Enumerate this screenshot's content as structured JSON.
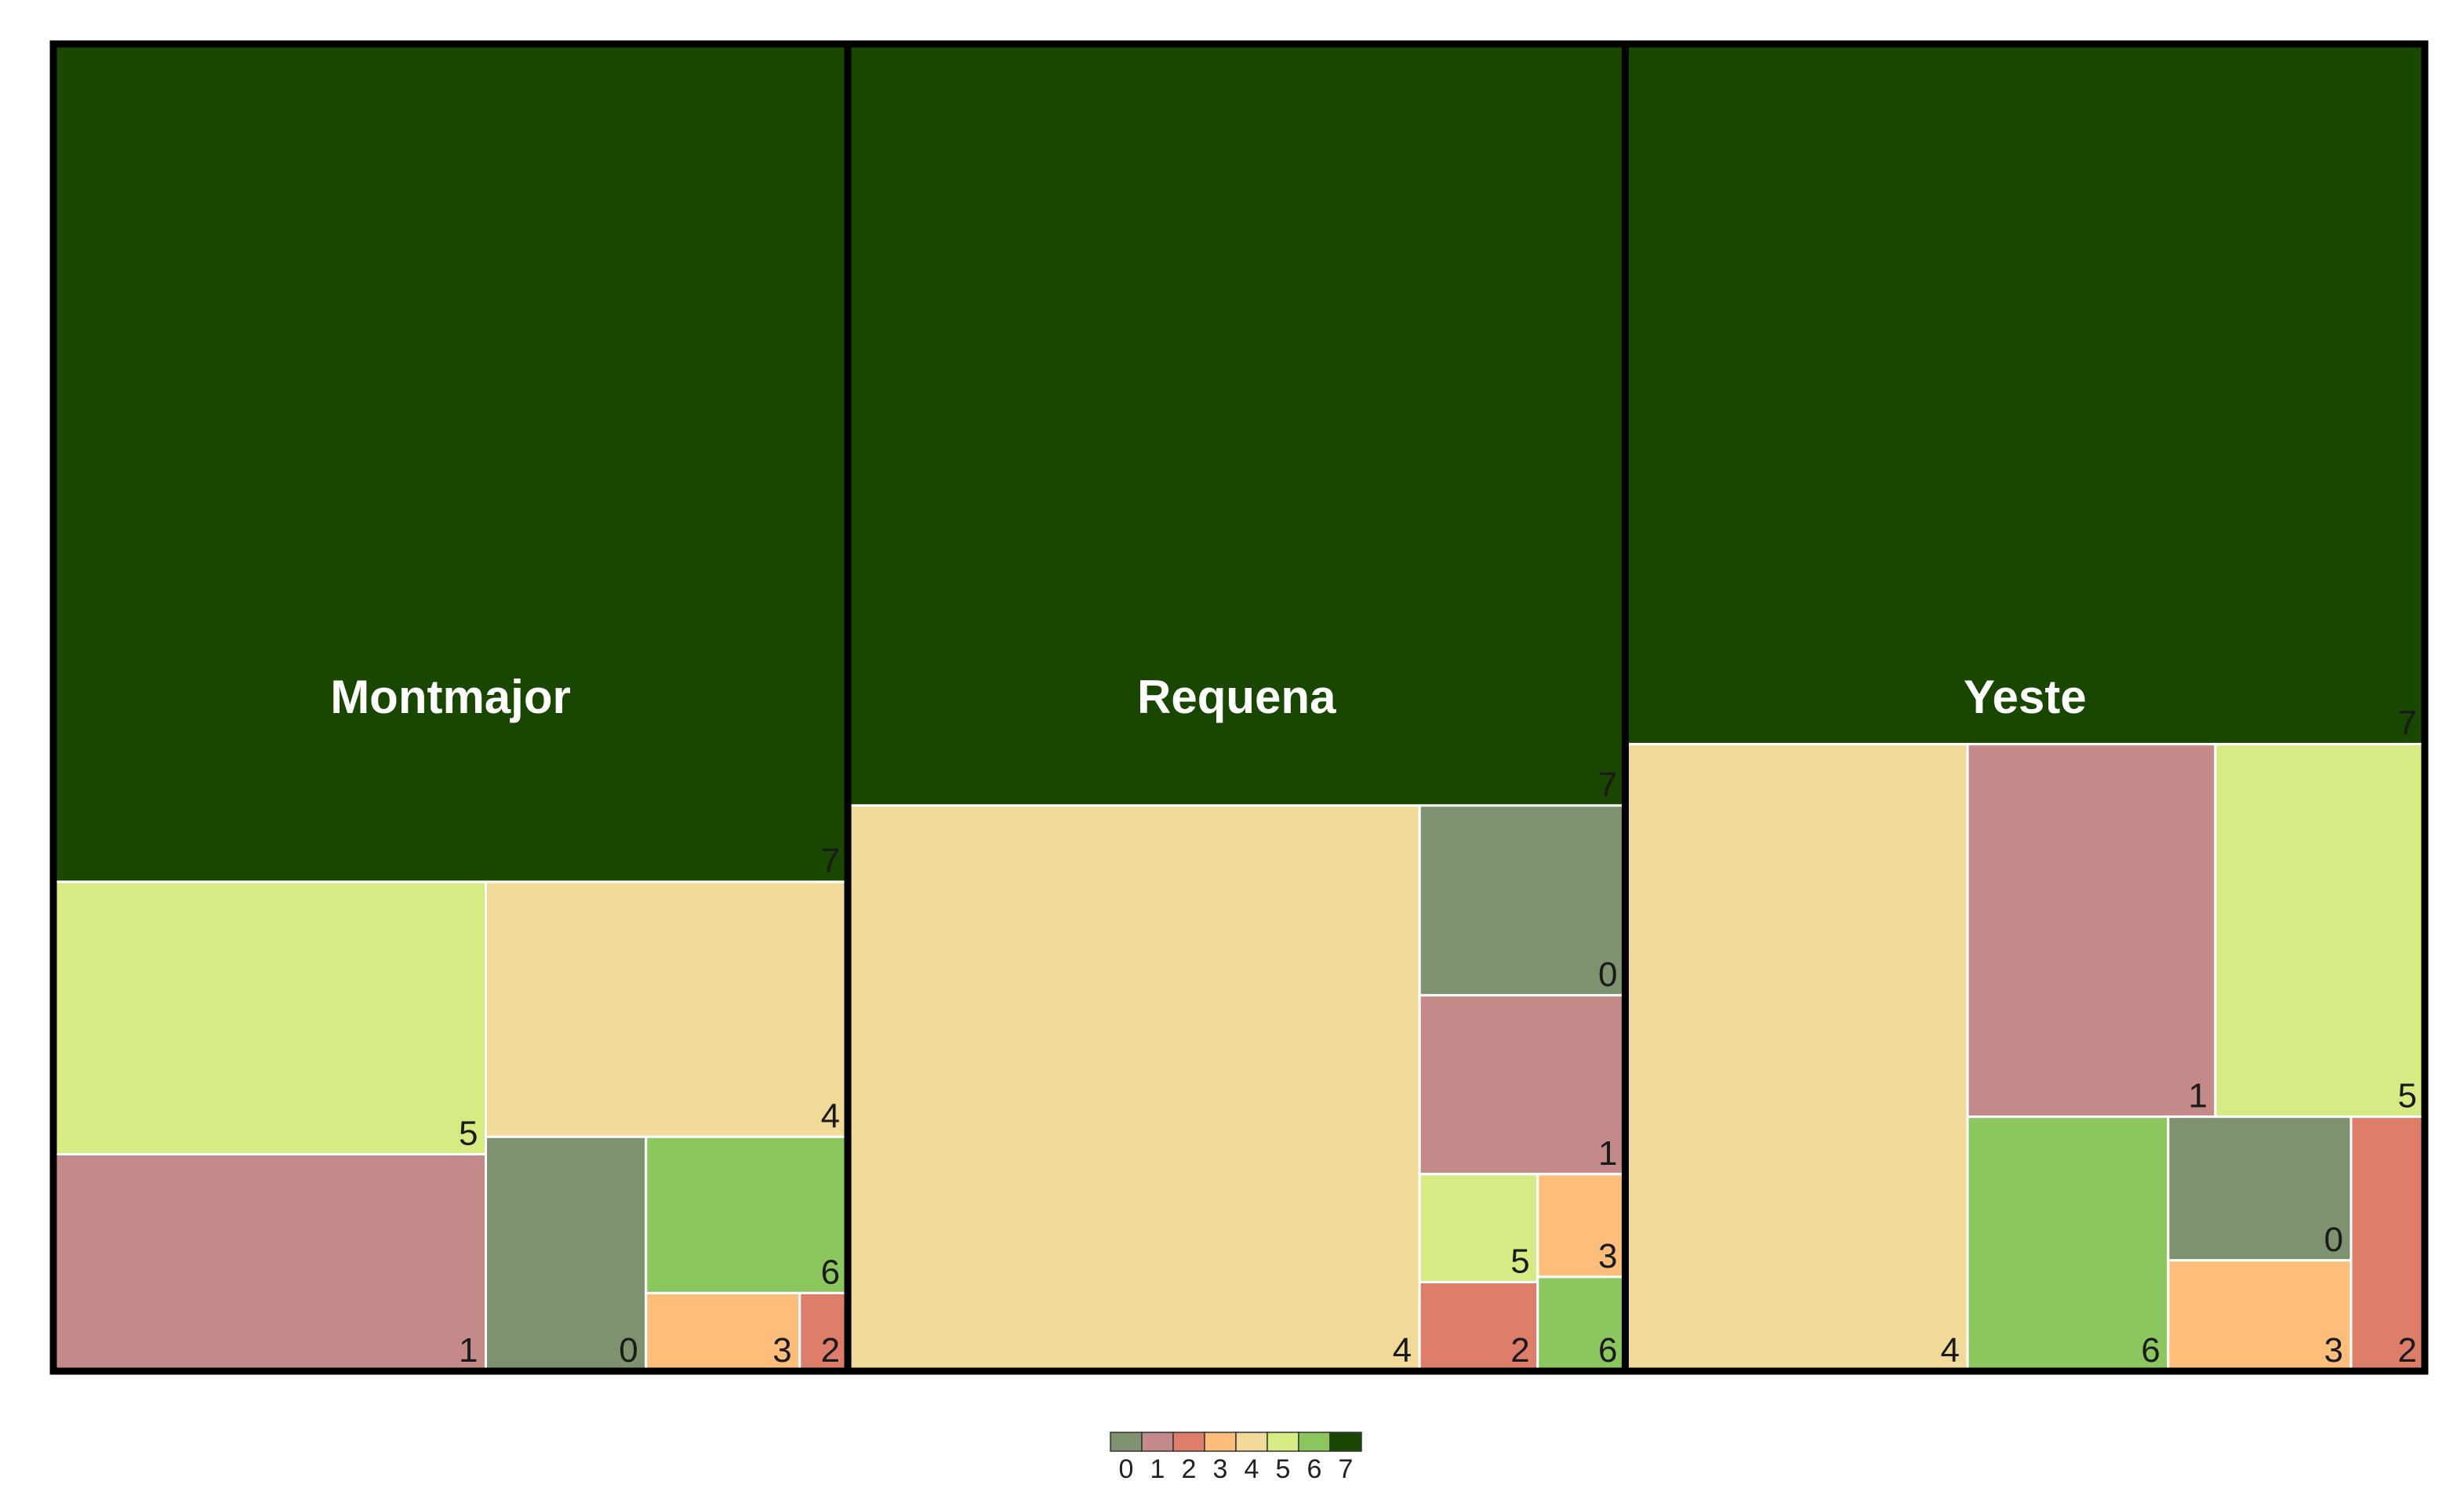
{
  "chart_data": {
    "type": "treemap",
    "title": "",
    "legend": {
      "placement": "bottom-center",
      "labels": [
        "0",
        "1",
        "2",
        "3",
        "4",
        "5",
        "6",
        "7"
      ]
    },
    "colors": {
      "0": "#7f9270",
      "1": "#c38a89",
      "2": "#dd7d6a",
      "3": "#fdbe7c",
      "4": "#f1da99",
      "5": "#d7eb85",
      "6": "#8bc75e",
      "7": "#1a4700"
    },
    "groups": [
      {
        "name": "Montmajor",
        "cells": [
          {
            "label": "7",
            "value": 8.87
          },
          {
            "label": "5",
            "value": 1.57
          },
          {
            "label": "1",
            "value": 1.25
          },
          {
            "label": "4",
            "value": 1.23
          },
          {
            "label": "0",
            "value": 0.5
          },
          {
            "label": "6",
            "value": 0.42
          },
          {
            "label": "3",
            "value": 0.16
          },
          {
            "label": "2",
            "value": 0.05
          }
        ]
      },
      {
        "name": "Requena",
        "cells": [
          {
            "label": "7",
            "value": 7.89
          },
          {
            "label": "4",
            "value": 4.31
          },
          {
            "label": "0",
            "value": 0.52
          },
          {
            "label": "1",
            "value": 0.49
          },
          {
            "label": "2",
            "value": 0.14
          },
          {
            "label": "3",
            "value": 0.12
          },
          {
            "label": "5",
            "value": 0.17
          },
          {
            "label": "6",
            "value": 0.11
          }
        ]
      },
      {
        "name": "Yeste",
        "cells": [
          {
            "label": "7",
            "value": 7.46
          },
          {
            "label": "4",
            "value": 2.86
          },
          {
            "label": "1",
            "value": 1.23
          },
          {
            "label": "5",
            "value": 1.04
          },
          {
            "label": "6",
            "value": 0.68
          },
          {
            "label": "0",
            "value": 0.35
          },
          {
            "label": "3",
            "value": 0.27
          },
          {
            "label": "2",
            "value": 0.25
          }
        ]
      }
    ]
  }
}
